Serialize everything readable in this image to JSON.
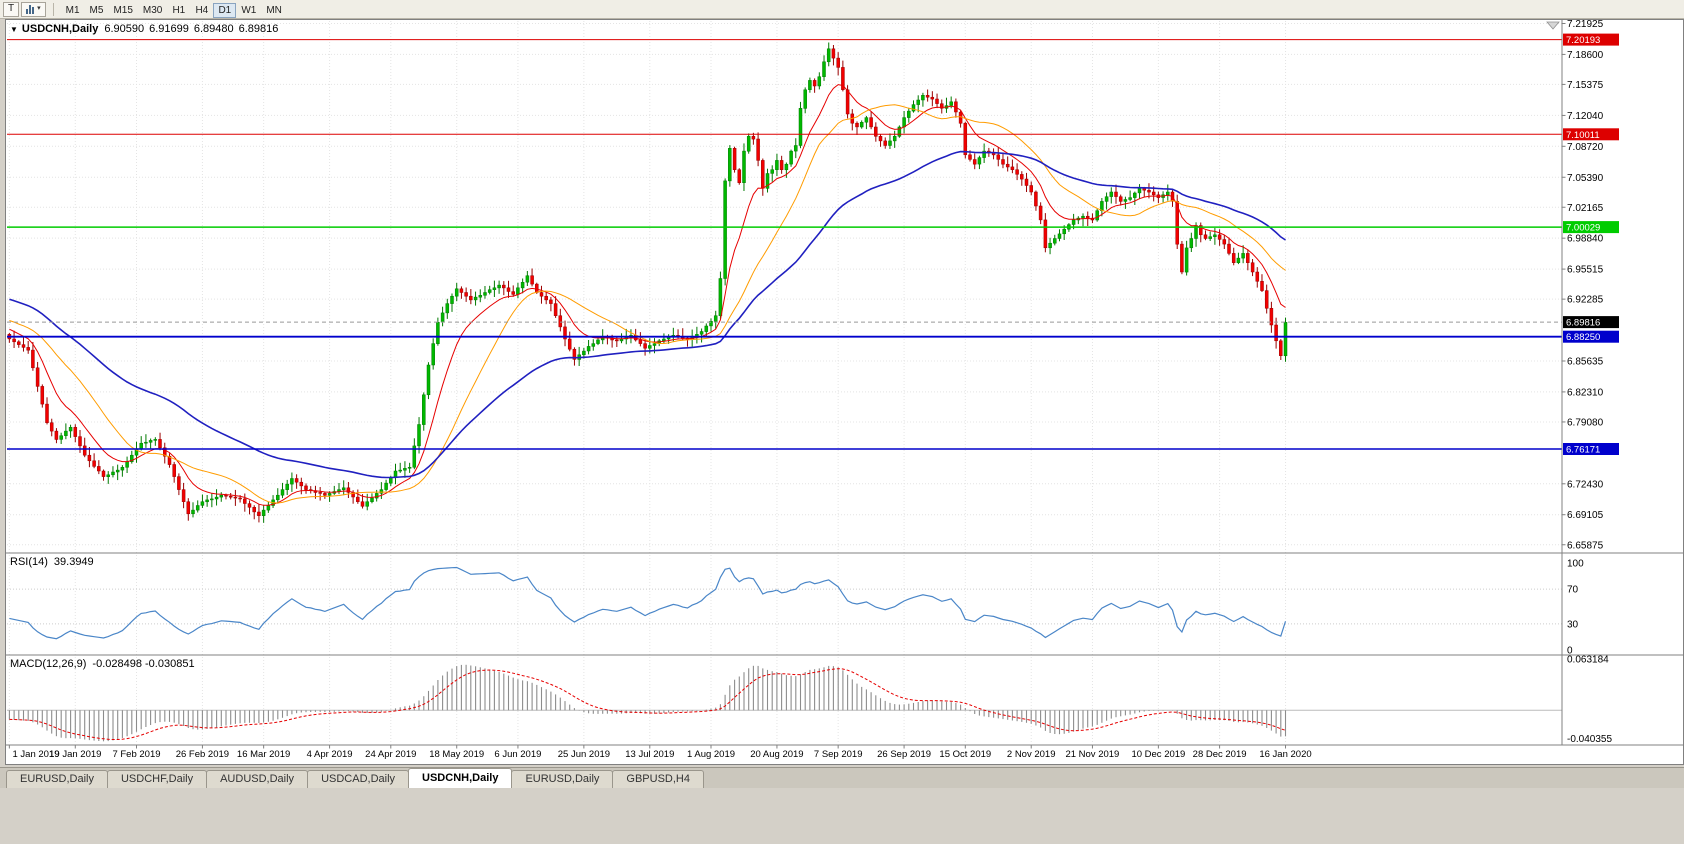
{
  "toolbar": {
    "t_button": "T",
    "caret": "▾",
    "timeframes": [
      "M1",
      "M5",
      "M15",
      "M30",
      "H1",
      "H4",
      "D1",
      "W1",
      "MN"
    ],
    "active_timeframe": "D1"
  },
  "chart": {
    "title": {
      "collapse_arrow": "▼",
      "symbol": "USDCNH,Daily",
      "open": "6.90590",
      "high": "6.91699",
      "low": "6.89480",
      "close": "6.89816"
    },
    "price_axis_labels": [
      "7.21925",
      "7.18600",
      "7.15375",
      "7.12040",
      "7.08720",
      "7.05390",
      "7.02165",
      "6.98840",
      "6.95515",
      "6.92285",
      "6.85635",
      "6.82310",
      "6.79080",
      "6.72430",
      "6.69105",
      "6.65875"
    ],
    "levels": [
      {
        "label": "7.20193",
        "price": 7.20193,
        "color": "#dd0000",
        "width": 1
      },
      {
        "label": "7.10011",
        "price": 7.10011,
        "color": "#dd0000",
        "width": 1
      },
      {
        "label": "7.00029",
        "price": 7.00029,
        "color": "#00cc00",
        "width": 1.5
      },
      {
        "label": "6.88250",
        "price": 6.8825,
        "color": "#0000cc",
        "width": 1.8
      },
      {
        "label": "6.76171",
        "price": 6.76171,
        "color": "#0000cc",
        "width": 1.5
      }
    ],
    "current_price": {
      "label": "6.89816",
      "value": 6.89816,
      "badge_color": "#000000"
    }
  },
  "rsi_panel": {
    "name": "RSI(14)",
    "value": "39.3949",
    "axis_labels": [
      "100",
      "70",
      "30",
      "0"
    ]
  },
  "macd_panel": {
    "name": "MACD(12,26,9)",
    "values": "-0.028498 -0.030851",
    "axis_labels": [
      "0.063184",
      "-0.040355"
    ]
  },
  "date_axis": [
    "1 Jan 2019",
    "19 Jan 2019",
    "7 Feb 2019",
    "26 Feb 2019",
    "16 Mar 2019",
    "4 Apr 2019",
    "24 Apr 2019",
    "18 May 2019",
    "6 Jun 2019",
    "25 Jun 2019",
    "13 Jul 2019",
    "1 Aug 2019",
    "20 Aug 2019",
    "7 Sep 2019",
    "26 Sep 2019",
    "15 Oct 2019",
    "2 Nov 2019",
    "21 Nov 2019",
    "10 Dec 2019",
    "28 Dec 2019",
    "16 Jan 2020"
  ],
  "bottom_tabs": {
    "tabs": [
      "EURUSD,Daily",
      "USDCHF,Daily",
      "AUDUSD,Daily",
      "USDCAD,Daily",
      "USDCNH,Daily",
      "EURUSD,Daily",
      "GBPUSD,H4"
    ],
    "active_index": 4
  },
  "chart_data": {
    "type": "candlestick",
    "symbol": "USDCNH",
    "timeframe": "Daily",
    "current_bar": {
      "open": 6.9059,
      "high": 6.91699,
      "low": 6.8948,
      "close": 6.89816
    },
    "price_axis_range": [
      6.65875,
      7.21925
    ],
    "x_tick_labels": [
      "1 Jan 2019",
      "19 Jan 2019",
      "7 Feb 2019",
      "26 Feb 2019",
      "16 Mar 2019",
      "4 Apr 2019",
      "24 Apr 2019",
      "18 May 2019",
      "6 Jun 2019",
      "25 Jun 2019",
      "13 Jul 2019",
      "1 Aug 2019",
      "20 Aug 2019",
      "7 Sep 2019",
      "26 Sep 2019",
      "15 Oct 2019",
      "2 Nov 2019",
      "21 Nov 2019",
      "10 Dec 2019",
      "28 Dec 2019",
      "16 Jan 2020"
    ],
    "first_open": 6.885,
    "ma_seed": {
      "start": 6.975,
      "end": 6.885,
      "count": 55
    },
    "closes": [
      6.88,
      6.877,
      6.874,
      6.871,
      6.868,
      6.849,
      6.829,
      6.81,
      6.79,
      6.781,
      6.772,
      6.776,
      6.781,
      6.785,
      6.775,
      6.765,
      6.755,
      6.749,
      6.743,
      6.738,
      6.732,
      6.734,
      6.737,
      6.739,
      6.742,
      6.748,
      6.755,
      6.762,
      6.768,
      6.769,
      6.771,
      6.772,
      6.763,
      6.754,
      6.745,
      6.732,
      6.718,
      6.705,
      6.692,
      6.696,
      6.701,
      6.705,
      6.707,
      6.708,
      6.71,
      6.712,
      6.711,
      6.71,
      6.709,
      6.708,
      6.703,
      6.699,
      6.694,
      6.69,
      6.696,
      6.701,
      6.707,
      6.712,
      6.718,
      6.724,
      6.73,
      6.726,
      6.722,
      6.718,
      6.717,
      6.715,
      6.714,
      6.712,
      6.714,
      6.716,
      6.718,
      6.72,
      6.715,
      6.71,
      6.705,
      6.7,
      6.705,
      6.709,
      6.714,
      6.718,
      6.725,
      6.731,
      6.738,
      6.739,
      6.741,
      6.742,
      6.765,
      6.788,
      6.82,
      6.852,
      6.875,
      6.898,
      6.908,
      6.918,
      6.926,
      6.934,
      6.93,
      6.926,
      6.922,
      6.925,
      6.927,
      6.93,
      6.933,
      6.935,
      6.938,
      6.935,
      6.931,
      6.928,
      6.935,
      6.941,
      6.948,
      6.939,
      6.93,
      6.926,
      6.922,
      6.918,
      6.905,
      6.893,
      6.88,
      6.869,
      6.858,
      6.863,
      6.867,
      6.872,
      6.875,
      6.879,
      6.882,
      6.881,
      6.879,
      6.878,
      6.88,
      6.882,
      6.884,
      6.879,
      6.875,
      6.87,
      6.873,
      6.875,
      6.878,
      6.88,
      6.882,
      6.884,
      6.883,
      6.881,
      6.88,
      6.883,
      6.885,
      6.888,
      6.894,
      6.899,
      6.905,
      6.945,
      7.05,
      7.085,
      7.062,
      7.048,
      7.082,
      7.098,
      7.095,
      7.072,
      7.042,
      7.058,
      7.062,
      7.072,
      7.062,
      7.068,
      7.082,
      7.088,
      7.128,
      7.148,
      7.158,
      7.152,
      7.162,
      7.178,
      7.192,
      7.182,
      7.172,
      7.148,
      7.122,
      7.112,
      7.108,
      7.113,
      7.118,
      7.108,
      7.098,
      7.093,
      7.088,
      7.093,
      7.098,
      7.108,
      7.118,
      7.125,
      7.132,
      7.137,
      7.142,
      7.14,
      7.138,
      7.133,
      7.128,
      7.131,
      7.135,
      7.124,
      7.112,
      7.078,
      7.073,
      7.068,
      7.075,
      7.082,
      7.08,
      7.078,
      7.073,
      7.068,
      7.065,
      7.062,
      7.057,
      7.052,
      7.045,
      7.038,
      7.023,
      7.008,
      6.978,
      6.983,
      6.988,
      6.993,
      6.998,
      7.003,
      7.008,
      7.01,
      7.012,
      7.01,
      7.008,
      7.018,
      7.028,
      7.033,
      7.038,
      7.033,
      7.028,
      7.03,
      7.032,
      7.037,
      7.042,
      7.04,
      7.038,
      7.035,
      7.032,
      7.035,
      7.038,
      7.028,
      6.982,
      6.952,
      6.978,
      6.988,
      7.002,
      6.992,
      6.988,
      6.99,
      6.992,
      6.987,
      6.982,
      6.972,
      6.962,
      6.967,
      6.972,
      6.962,
      6.952,
      6.942,
      6.932,
      6.913,
      6.895,
      6.878,
      6.862,
      6.898
    ],
    "overlays": [
      {
        "name": "ma-fast-line",
        "type": "ema",
        "period": 10,
        "color": "#e60000",
        "width": 1
      },
      {
        "name": "ma-mid-line",
        "type": "sma",
        "period": 21,
        "color": "#ff9c00",
        "width": 1
      },
      {
        "name": "ma-slow-line",
        "type": "ema",
        "period": 55,
        "color": "#2020c0",
        "width": 1.6
      }
    ],
    "horizontal_lines": [
      7.20193,
      7.10011,
      7.00029,
      6.8825,
      6.76171
    ],
    "sub_panels": [
      {
        "name": "RSI",
        "period": 14,
        "last_value": 39.3949,
        "range": [
          0,
          100
        ],
        "levels": [
          70,
          30
        ],
        "color": "#4a86c8"
      },
      {
        "name": "MACD",
        "fast": 12,
        "slow": 26,
        "signal": 9,
        "last_main": -0.028498,
        "last_signal": -0.030851,
        "range": [
          -0.040355,
          0.063184
        ]
      }
    ],
    "colors": {
      "up_candle": "#00b800",
      "up_candle_border": "#007a00",
      "down_candle": "#f20000",
      "down_candle_border": "#9a0000",
      "macd_histogram": "#8c8c8c",
      "macd_signal": "#e60000"
    }
  }
}
